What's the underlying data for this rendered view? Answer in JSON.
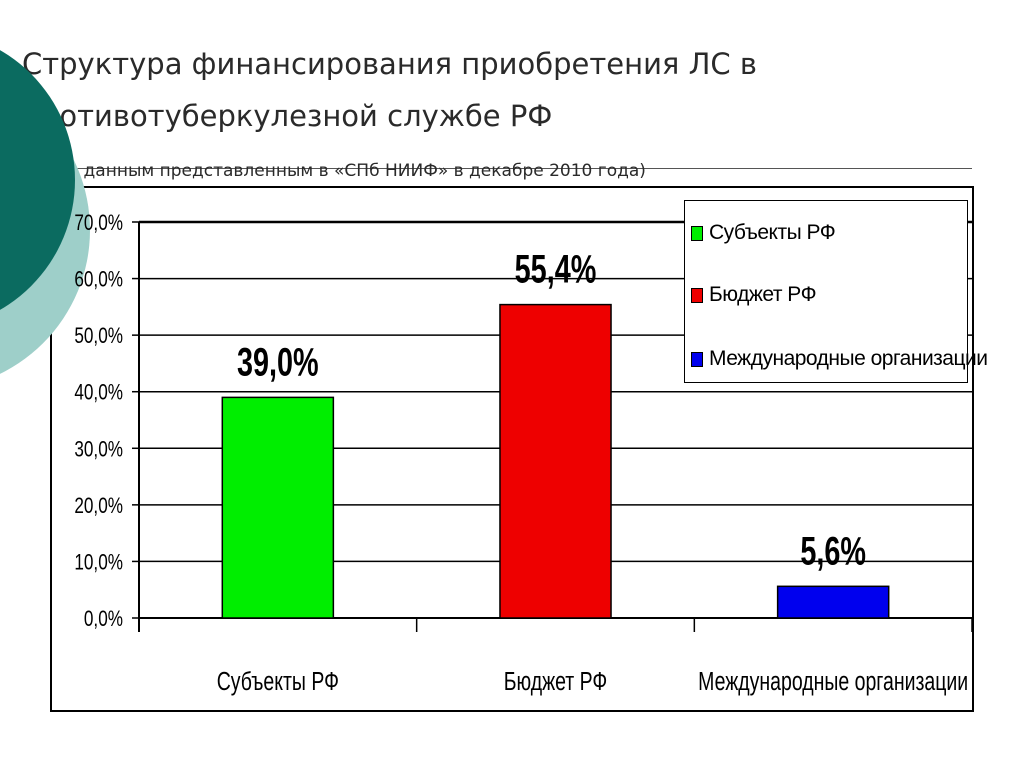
{
  "slide": {
    "title_line1": "Структура финансирования приобретения ЛС в",
    "title_line2": "противотуберкулезной службе РФ",
    "subtitle": "(по данным представленным в «СПб НИИФ» в декабре 2010 года)"
  },
  "colors": {
    "decor_dark": "#0b6b60",
    "decor_light": "#9ecfc9",
    "gridline": "#000000"
  },
  "legend": {
    "items": [
      {
        "label": "Субъекты РФ",
        "color": "#00ee00"
      },
      {
        "label": "Бюджет РФ",
        "color": "#ee0000"
      },
      {
        "label": "Международные организации",
        "color": "#0000ee"
      }
    ]
  },
  "chart_data": {
    "type": "bar",
    "categories": [
      "Субъекты РФ",
      "Бюджет РФ",
      "Международные организации"
    ],
    "values": [
      39.0,
      55.4,
      5.6
    ],
    "value_labels": [
      "39,0%",
      "55,4%",
      "5,6%"
    ],
    "colors": [
      "#00ee00",
      "#ee0000",
      "#0000ee"
    ],
    "ylim": [
      0,
      70
    ],
    "yticks": [
      0,
      10,
      20,
      30,
      40,
      50,
      60,
      70
    ],
    "ytick_labels": [
      "0,0%",
      "10,0%",
      "20,0%",
      "30,0%",
      "40,0%",
      "50,0%",
      "60,0%",
      "70,0%"
    ],
    "grid": true,
    "legend_position": "top-right"
  }
}
